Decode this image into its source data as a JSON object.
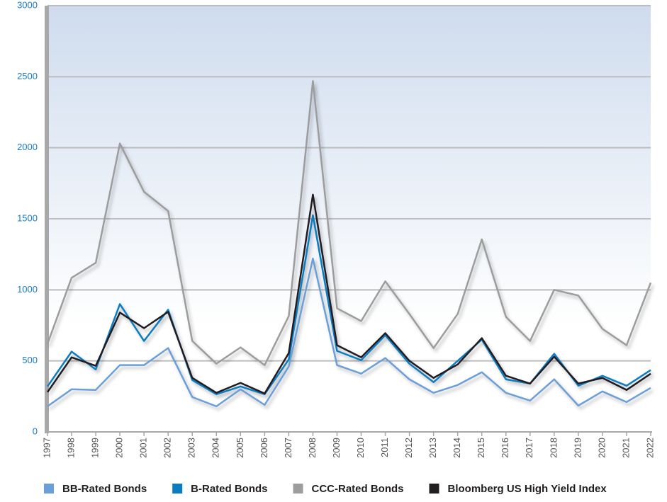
{
  "chart_data": {
    "type": "line",
    "categories": [
      "1997",
      "1998",
      "1999",
      "2000",
      "2001",
      "2002",
      "2003",
      "2004",
      "2005",
      "2006",
      "2007",
      "2008",
      "2009",
      "2010",
      "2011",
      "2012",
      "2013",
      "2014",
      "2015",
      "2016",
      "2017",
      "2018",
      "2019",
      "2020",
      "2021",
      "2022"
    ],
    "series": [
      {
        "name": "BB-Rated Bonds",
        "color": "#6b9fd9",
        "values": [
          180,
          300,
          295,
          470,
          470,
          590,
          245,
          180,
          300,
          190,
          460,
          1220,
          470,
          410,
          520,
          370,
          275,
          330,
          420,
          275,
          220,
          370,
          185,
          285,
          210,
          310
        ]
      },
      {
        "name": "B-Rated Bonds",
        "color": "#0a7dc2",
        "values": [
          320,
          565,
          440,
          900,
          640,
          860,
          365,
          265,
          320,
          265,
          510,
          1525,
          570,
          505,
          680,
          480,
          350,
          500,
          650,
          370,
          340,
          550,
          325,
          395,
          325,
          435
        ]
      },
      {
        "name": "CCC-Rated Bonds",
        "color": "#9d9d9d",
        "values": [
          620,
          1085,
          1190,
          2030,
          1690,
          1555,
          640,
          480,
          595,
          470,
          815,
          2470,
          870,
          780,
          1060,
          830,
          590,
          830,
          1355,
          810,
          640,
          1000,
          960,
          725,
          610,
          1050
        ]
      },
      {
        "name": "Bloomberg US High Yield Index",
        "color": "#231f20",
        "values": [
          280,
          525,
          465,
          840,
          730,
          845,
          380,
          275,
          345,
          270,
          555,
          1670,
          610,
          525,
          695,
          500,
          380,
          475,
          660,
          395,
          340,
          530,
          340,
          380,
          295,
          410
        ]
      }
    ],
    "ylim": [
      0,
      3000
    ],
    "yticks": [
      0,
      500,
      1000,
      1500,
      2000,
      2500,
      3000
    ],
    "grid": true,
    "legend": "bottom"
  }
}
